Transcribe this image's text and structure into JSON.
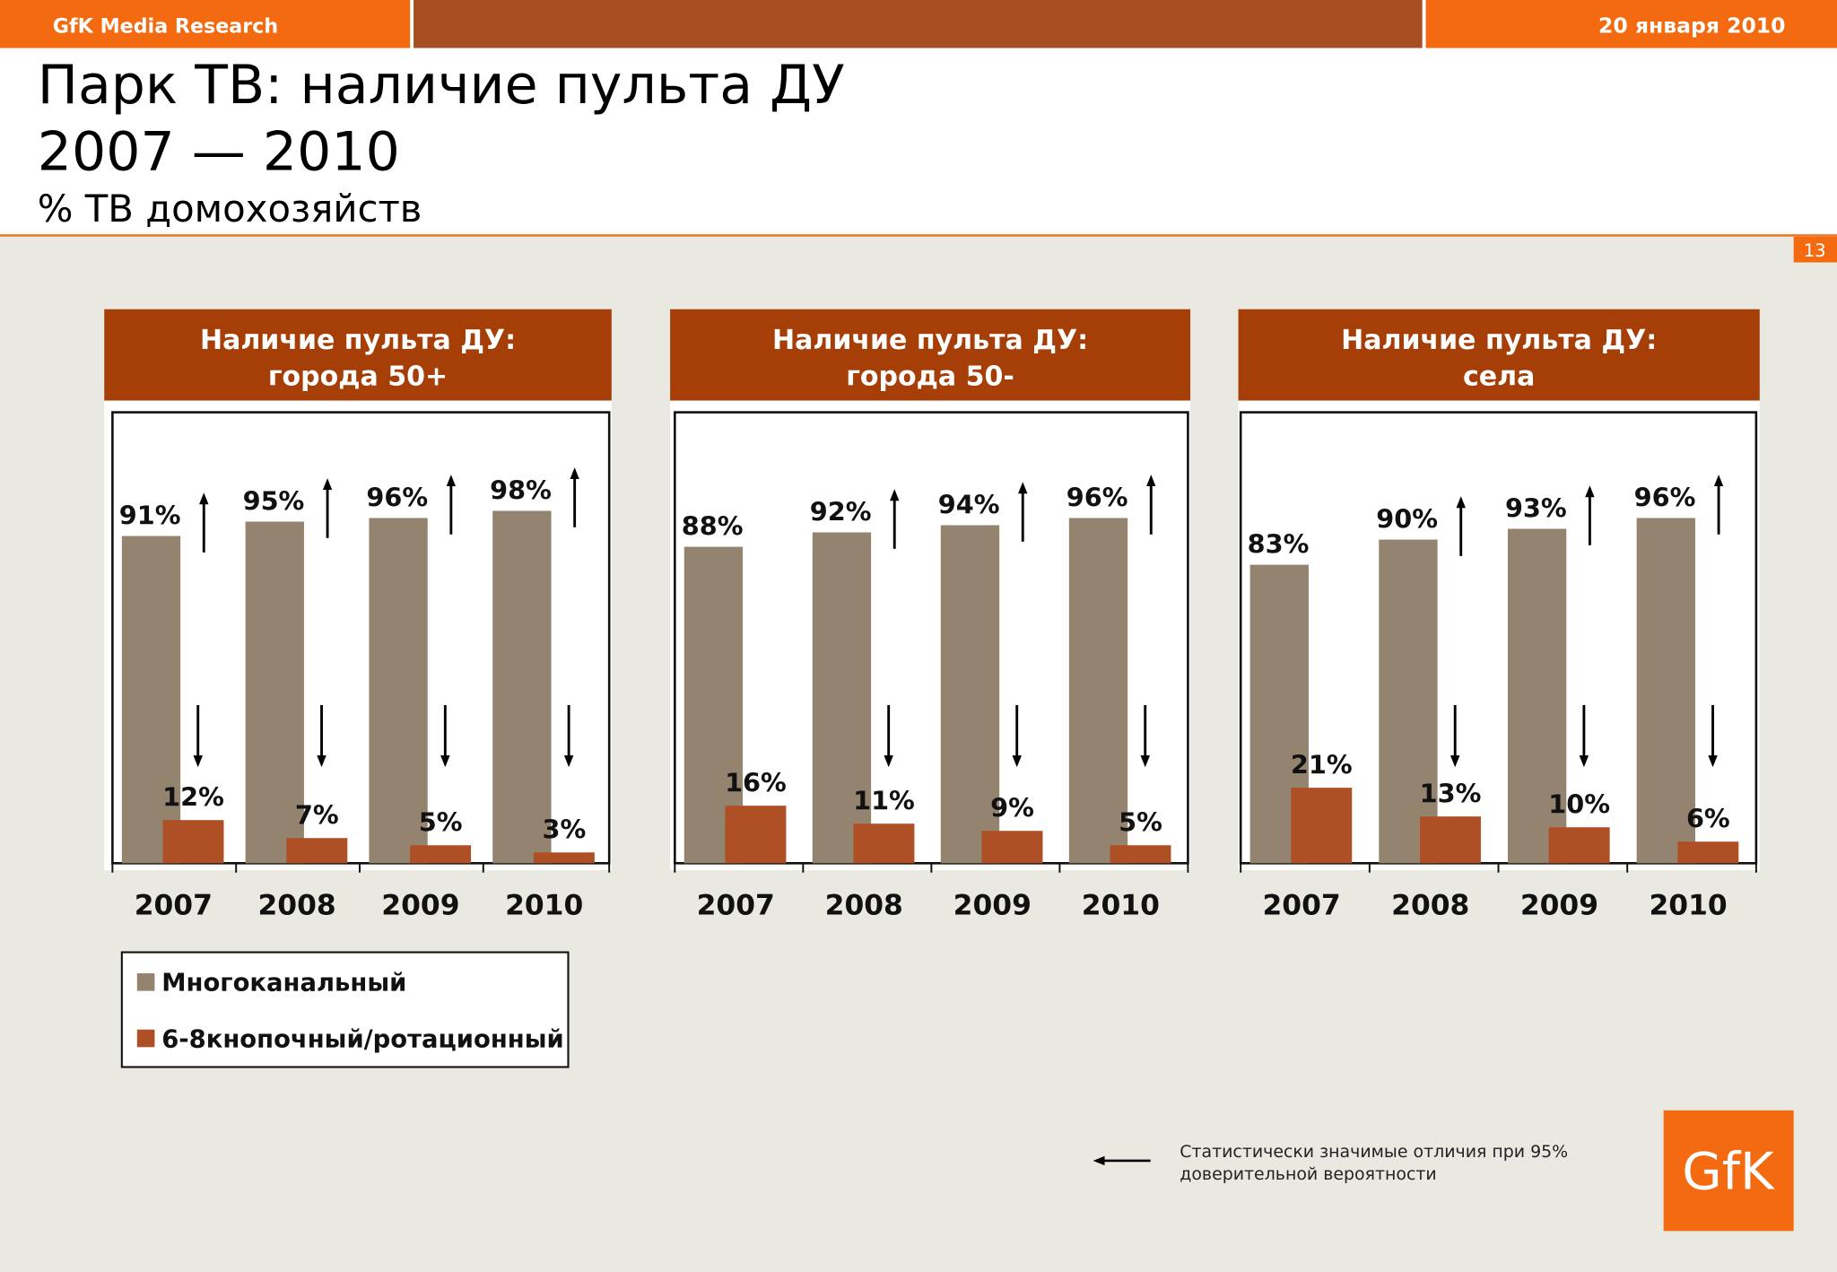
{
  "header": {
    "brand": "GfK Media Research",
    "date": "20 января 2010",
    "page_number": "13"
  },
  "title": {
    "line1": "Парк ТВ: наличие пульта ДУ",
    "line2": "2007 — 2010",
    "subtitle": "% ТВ домохозяйств"
  },
  "colors": {
    "orange": "#f36a10",
    "rust": "#a84e23",
    "panel_header": "#a63e07",
    "multichannel": "#94836e",
    "button68": "#ae4f26",
    "background": "#e9e8e1"
  },
  "chart_data": [
    {
      "type": "bar",
      "title": "Наличие пульта ДУ:",
      "subtitle": "города 50+",
      "categories": [
        "2007",
        "2008",
        "2009",
        "2010"
      ],
      "ylim": [
        0,
        100
      ],
      "series": [
        {
          "name": "Многоканальный",
          "values": [
            91,
            95,
            96,
            98
          ],
          "labels": [
            "91%",
            "95%",
            "96%",
            "98%"
          ],
          "significance": [
            "up",
            "up",
            "up",
            "up"
          ]
        },
        {
          "name": "6-8кнопочный/ротационный",
          "values": [
            12,
            7,
            5,
            3
          ],
          "labels": [
            "12%",
            "7%",
            "5%",
            "3%"
          ],
          "significance": [
            "down",
            "down",
            "down",
            "down"
          ]
        }
      ]
    },
    {
      "type": "bar",
      "title": "Наличие пульта ДУ:",
      "subtitle": "города 50-",
      "categories": [
        "2007",
        "2008",
        "2009",
        "2010"
      ],
      "ylim": [
        0,
        100
      ],
      "series": [
        {
          "name": "Многоканальный",
          "values": [
            88,
            92,
            94,
            96
          ],
          "labels": [
            "88%",
            "92%",
            "94%",
            "96%"
          ],
          "significance": [
            "none",
            "up",
            "up",
            "up"
          ]
        },
        {
          "name": "6-8кнопочный/ротационный",
          "values": [
            16,
            11,
            9,
            5
          ],
          "labels": [
            "16%",
            "11%",
            "9%",
            "5%"
          ],
          "significance": [
            "none",
            "down",
            "down",
            "down"
          ]
        }
      ]
    },
    {
      "type": "bar",
      "title": "Наличие пульта ДУ:",
      "subtitle": "села",
      "categories": [
        "2007",
        "2008",
        "2009",
        "2010"
      ],
      "ylim": [
        0,
        100
      ],
      "series": [
        {
          "name": "Многоканальный",
          "values": [
            83,
            90,
            93,
            96
          ],
          "labels": [
            "83%",
            "90%",
            "93%",
            "96%"
          ],
          "significance": [
            "none",
            "up",
            "up",
            "up"
          ]
        },
        {
          "name": "6-8кнопочный/ротационный",
          "values": [
            21,
            13,
            10,
            6
          ],
          "labels": [
            "21%",
            "13%",
            "10%",
            "6%"
          ],
          "significance": [
            "none",
            "down",
            "down",
            "down"
          ]
        }
      ]
    }
  ],
  "legend": {
    "items": [
      {
        "label": "Многоканальный",
        "color": "#94836e"
      },
      {
        "label": "6-8кнопочный/ротационный",
        "color": "#ae4f26"
      }
    ]
  },
  "note": {
    "line1": "Статистически значимые отличия при 95%",
    "line2": "доверительной вероятности",
    "icon": "arrow-left-icon"
  },
  "logo": {
    "text": "GfK"
  }
}
